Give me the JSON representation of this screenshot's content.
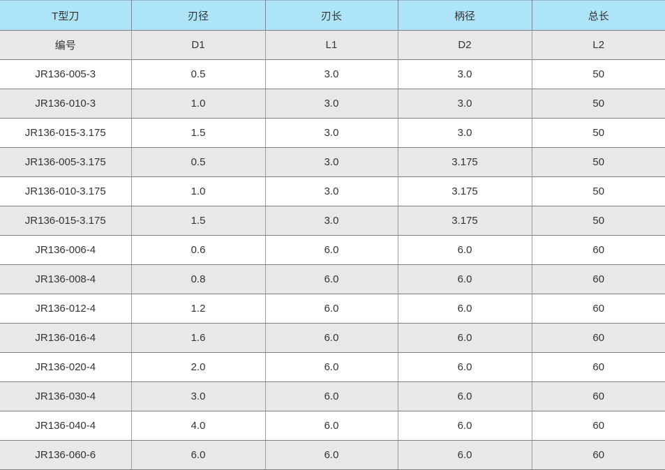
{
  "table": {
    "header": {
      "row1": [
        "T型刀",
        "刃径",
        "刃长",
        "柄径",
        "总长"
      ],
      "row2": [
        "编号",
        "D1",
        "L1",
        "D2",
        "L2"
      ]
    },
    "rows": [
      [
        "JR136-005-3",
        "0.5",
        "3.0",
        "3.0",
        "50"
      ],
      [
        "JR136-010-3",
        "1.0",
        "3.0",
        "3.0",
        "50"
      ],
      [
        "JR136-015-3.175",
        "1.5",
        "3.0",
        "3.0",
        "50"
      ],
      [
        "JR136-005-3.175",
        "0.5",
        "3.0",
        "3.175",
        "50"
      ],
      [
        "JR136-010-3.175",
        "1.0",
        "3.0",
        "3.175",
        "50"
      ],
      [
        "JR136-015-3.175",
        "1.5",
        "3.0",
        "3.175",
        "50"
      ],
      [
        "JR136-006-4",
        "0.6",
        "6.0",
        "6.0",
        "60"
      ],
      [
        "JR136-008-4",
        "0.8",
        "6.0",
        "6.0",
        "60"
      ],
      [
        "JR136-012-4",
        "1.2",
        "6.0",
        "6.0",
        "60"
      ],
      [
        "JR136-016-4",
        "1.6",
        "6.0",
        "6.0",
        "60"
      ],
      [
        "JR136-020-4",
        "2.0",
        "6.0",
        "6.0",
        "60"
      ],
      [
        "JR136-030-4",
        "3.0",
        "6.0",
        "6.0",
        "60"
      ],
      [
        "JR136-040-4",
        "4.0",
        "6.0",
        "6.0",
        "60"
      ],
      [
        "JR136-060-6",
        "6.0",
        "6.0",
        "6.0",
        "60"
      ]
    ]
  },
  "colors": {
    "header_bg": "#aee4f8",
    "subheader_bg": "#e8e8e8",
    "row_bg": "#ffffff",
    "row_alt_bg": "#e8e8e8",
    "horizontal_line": "#7d7d7d",
    "vertical_line": "#9c9c9c",
    "text": "#333333"
  }
}
